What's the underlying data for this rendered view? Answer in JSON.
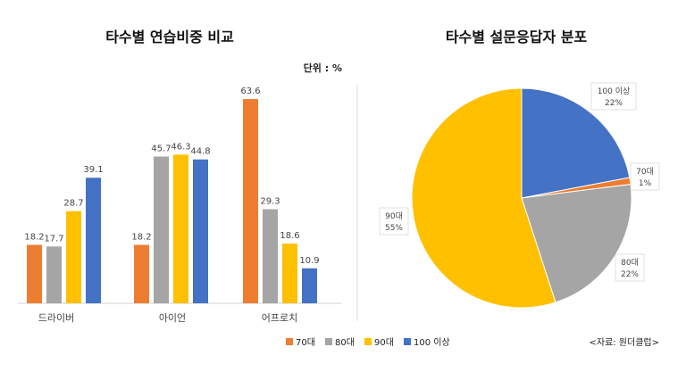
{
  "colors": {
    "s70": "#ED7D31",
    "s80": "#A5A5A5",
    "s90": "#FFC000",
    "s100": "#4472C4"
  },
  "source_note": "<자료: 원더클럽>",
  "chart_data": [
    {
      "type": "bar",
      "title": "타수별 연습비중 비교",
      "unit_label": "단위 : %",
      "categories": [
        "드라이버",
        "아이언",
        "어프로치"
      ],
      "series": [
        {
          "name": "70대",
          "values": [
            18.2,
            18.2,
            63.6
          ]
        },
        {
          "name": "80대",
          "values": [
            17.7,
            45.7,
            29.3
          ]
        },
        {
          "name": "90대",
          "values": [
            28.7,
            46.3,
            18.6
          ]
        },
        {
          "name": "100 이상",
          "values": [
            39.1,
            44.8,
            10.9
          ]
        }
      ],
      "value_labels": [
        [
          "18.2",
          "17.7",
          "28.7",
          "39.1"
        ],
        [
          "18.2",
          "45.7",
          "46.3",
          "44.8"
        ],
        [
          "63.6",
          "29.3",
          "18.6",
          "10.9"
        ]
      ],
      "ylim": [
        0,
        70
      ],
      "grid": false,
      "legend": {
        "placement": "bottom",
        "entries": [
          "70대",
          "80대",
          "90대",
          "100 이상"
        ]
      }
    },
    {
      "type": "pie",
      "title": "타수별 설문응답자 분포",
      "slices": [
        {
          "name": "100 이상",
          "value": 22,
          "label": "22%"
        },
        {
          "name": "70대",
          "value": 1,
          "label": "1%"
        },
        {
          "name": "80대",
          "value": 22,
          "label": "22%"
        },
        {
          "name": "90대",
          "value": 55,
          "label": "55%"
        }
      ]
    }
  ]
}
